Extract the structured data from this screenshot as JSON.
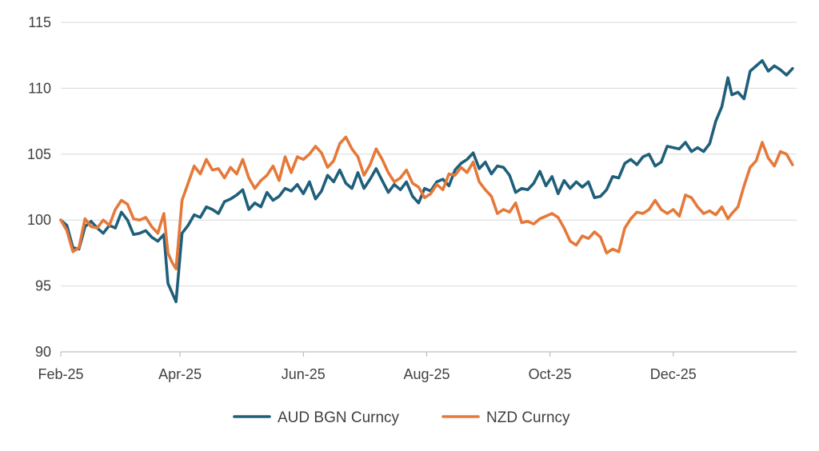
{
  "chart_data": {
    "type": "line",
    "title": "",
    "xlabel": "",
    "ylabel": "",
    "ylim": [
      90,
      115
    ],
    "yticks": [
      90,
      95,
      100,
      105,
      110,
      115
    ],
    "xlim": [
      "2025-02-01",
      "2026-01-31"
    ],
    "xticks": [
      {
        "date": "2025-02-01",
        "label": "Feb-25"
      },
      {
        "date": "2025-04-01",
        "label": "Apr-25"
      },
      {
        "date": "2025-06-01",
        "label": "Jun-25"
      },
      {
        "date": "2025-08-01",
        "label": "Aug-25"
      },
      {
        "date": "2025-10-01",
        "label": "Oct-25"
      },
      {
        "date": "2025-12-01",
        "label": "Dec-25"
      }
    ],
    "grid": "horizontal",
    "legend": "bottom",
    "series": [
      {
        "name": "AUD BGN Curncy",
        "color": "#1f5f7a",
        "points": [
          [
            "2025-02-01",
            100.0
          ],
          [
            "2025-02-04",
            99.6
          ],
          [
            "2025-02-07",
            97.9
          ],
          [
            "2025-02-10",
            97.8
          ],
          [
            "2025-02-13",
            99.5
          ],
          [
            "2025-02-16",
            99.9
          ],
          [
            "2025-02-19",
            99.4
          ],
          [
            "2025-02-22",
            99.0
          ],
          [
            "2025-02-25",
            99.6
          ],
          [
            "2025-02-28",
            99.4
          ],
          [
            "2025-03-03",
            100.6
          ],
          [
            "2025-03-06",
            100.0
          ],
          [
            "2025-03-09",
            98.9
          ],
          [
            "2025-03-12",
            99.0
          ],
          [
            "2025-03-15",
            99.2
          ],
          [
            "2025-03-18",
            98.7
          ],
          [
            "2025-03-21",
            98.4
          ],
          [
            "2025-03-24",
            98.9
          ],
          [
            "2025-03-26",
            95.2
          ],
          [
            "2025-03-28",
            94.5
          ],
          [
            "2025-03-30",
            93.8
          ],
          [
            "2025-04-02",
            99.0
          ],
          [
            "2025-04-05",
            99.6
          ],
          [
            "2025-04-08",
            100.4
          ],
          [
            "2025-04-11",
            100.2
          ],
          [
            "2025-04-14",
            101.0
          ],
          [
            "2025-04-17",
            100.8
          ],
          [
            "2025-04-20",
            100.5
          ],
          [
            "2025-04-23",
            101.4
          ],
          [
            "2025-04-26",
            101.6
          ],
          [
            "2025-04-29",
            101.9
          ],
          [
            "2025-05-02",
            102.3
          ],
          [
            "2025-05-05",
            100.8
          ],
          [
            "2025-05-08",
            101.3
          ],
          [
            "2025-05-11",
            101.0
          ],
          [
            "2025-05-14",
            102.1
          ],
          [
            "2025-05-17",
            101.5
          ],
          [
            "2025-05-20",
            101.8
          ],
          [
            "2025-05-23",
            102.4
          ],
          [
            "2025-05-26",
            102.2
          ],
          [
            "2025-05-29",
            102.7
          ],
          [
            "2025-06-01",
            102.0
          ],
          [
            "2025-06-04",
            102.9
          ],
          [
            "2025-06-07",
            101.6
          ],
          [
            "2025-06-10",
            102.2
          ],
          [
            "2025-06-13",
            103.4
          ],
          [
            "2025-06-16",
            102.9
          ],
          [
            "2025-06-19",
            103.8
          ],
          [
            "2025-06-22",
            102.8
          ],
          [
            "2025-06-25",
            102.4
          ],
          [
            "2025-06-28",
            103.6
          ],
          [
            "2025-07-01",
            102.4
          ],
          [
            "2025-07-04",
            103.1
          ],
          [
            "2025-07-07",
            103.9
          ],
          [
            "2025-07-10",
            103.0
          ],
          [
            "2025-07-13",
            102.1
          ],
          [
            "2025-07-16",
            102.7
          ],
          [
            "2025-07-19",
            102.3
          ],
          [
            "2025-07-22",
            102.9
          ],
          [
            "2025-07-25",
            101.8
          ],
          [
            "2025-07-28",
            101.3
          ],
          [
            "2025-07-31",
            102.4
          ],
          [
            "2025-08-03",
            102.2
          ],
          [
            "2025-08-06",
            102.9
          ],
          [
            "2025-08-09",
            103.1
          ],
          [
            "2025-08-12",
            102.6
          ],
          [
            "2025-08-15",
            103.8
          ],
          [
            "2025-08-18",
            104.3
          ],
          [
            "2025-08-21",
            104.6
          ],
          [
            "2025-08-24",
            105.1
          ],
          [
            "2025-08-27",
            103.9
          ],
          [
            "2025-08-30",
            104.4
          ],
          [
            "2025-09-02",
            103.5
          ],
          [
            "2025-09-05",
            104.1
          ],
          [
            "2025-09-08",
            104.0
          ],
          [
            "2025-09-11",
            103.4
          ],
          [
            "2025-09-14",
            102.1
          ],
          [
            "2025-09-17",
            102.4
          ],
          [
            "2025-09-20",
            102.3
          ],
          [
            "2025-09-23",
            102.8
          ],
          [
            "2025-09-26",
            103.7
          ],
          [
            "2025-09-29",
            102.6
          ],
          [
            "2025-10-02",
            103.3
          ],
          [
            "2025-10-05",
            102.0
          ],
          [
            "2025-10-08",
            103.0
          ],
          [
            "2025-10-11",
            102.4
          ],
          [
            "2025-10-14",
            102.9
          ],
          [
            "2025-10-17",
            102.5
          ],
          [
            "2025-10-20",
            102.9
          ],
          [
            "2025-10-23",
            101.7
          ],
          [
            "2025-10-26",
            101.8
          ],
          [
            "2025-10-29",
            102.3
          ],
          [
            "2025-11-01",
            103.3
          ],
          [
            "2025-11-04",
            103.2
          ],
          [
            "2025-11-07",
            104.3
          ],
          [
            "2025-11-10",
            104.6
          ],
          [
            "2025-11-13",
            104.2
          ],
          [
            "2025-11-16",
            104.8
          ],
          [
            "2025-11-19",
            105.0
          ],
          [
            "2025-11-22",
            104.1
          ],
          [
            "2025-11-25",
            104.4
          ],
          [
            "2025-11-28",
            105.6
          ],
          [
            "2025-12-01",
            105.5
          ],
          [
            "2025-12-04",
            105.4
          ],
          [
            "2025-12-07",
            105.9
          ],
          [
            "2025-12-10",
            105.2
          ],
          [
            "2025-12-13",
            105.5
          ],
          [
            "2025-12-16",
            105.2
          ],
          [
            "2025-12-19",
            105.8
          ],
          [
            "2025-12-22",
            107.5
          ],
          [
            "2025-12-25",
            108.6
          ],
          [
            "2025-12-28",
            110.8
          ],
          [
            "2025-12-30",
            109.5
          ],
          [
            "2026-01-02",
            109.7
          ],
          [
            "2026-01-05",
            109.2
          ],
          [
            "2026-01-08",
            111.3
          ],
          [
            "2026-01-11",
            111.7
          ],
          [
            "2026-01-14",
            112.1
          ],
          [
            "2026-01-17",
            111.3
          ],
          [
            "2026-01-20",
            111.7
          ],
          [
            "2026-01-23",
            111.4
          ],
          [
            "2026-01-26",
            111.0
          ],
          [
            "2026-01-29",
            111.5
          ]
        ]
      },
      {
        "name": "NZD Curncy",
        "color": "#e5793a",
        "points": [
          [
            "2025-02-01",
            100.0
          ],
          [
            "2025-02-04",
            99.2
          ],
          [
            "2025-02-07",
            97.6
          ],
          [
            "2025-02-10",
            97.9
          ],
          [
            "2025-02-13",
            100.1
          ],
          [
            "2025-02-16",
            99.5
          ],
          [
            "2025-02-19",
            99.4
          ],
          [
            "2025-02-22",
            100.0
          ],
          [
            "2025-02-25",
            99.6
          ],
          [
            "2025-02-28",
            100.8
          ],
          [
            "2025-03-03",
            101.5
          ],
          [
            "2025-03-06",
            101.2
          ],
          [
            "2025-03-09",
            100.1
          ],
          [
            "2025-03-12",
            100.0
          ],
          [
            "2025-03-15",
            100.2
          ],
          [
            "2025-03-18",
            99.5
          ],
          [
            "2025-03-21",
            99.0
          ],
          [
            "2025-03-24",
            100.5
          ],
          [
            "2025-03-26",
            97.5
          ],
          [
            "2025-03-28",
            96.8
          ],
          [
            "2025-03-30",
            96.3
          ],
          [
            "2025-04-02",
            101.5
          ],
          [
            "2025-04-05",
            102.8
          ],
          [
            "2025-04-08",
            104.1
          ],
          [
            "2025-04-11",
            103.5
          ],
          [
            "2025-04-14",
            104.6
          ],
          [
            "2025-04-17",
            103.8
          ],
          [
            "2025-04-20",
            103.9
          ],
          [
            "2025-04-23",
            103.2
          ],
          [
            "2025-04-26",
            104.0
          ],
          [
            "2025-04-29",
            103.5
          ],
          [
            "2025-05-02",
            104.6
          ],
          [
            "2025-05-05",
            103.2
          ],
          [
            "2025-05-08",
            102.4
          ],
          [
            "2025-05-11",
            103.0
          ],
          [
            "2025-05-14",
            103.4
          ],
          [
            "2025-05-17",
            104.1
          ],
          [
            "2025-05-20",
            103.0
          ],
          [
            "2025-05-23",
            104.8
          ],
          [
            "2025-05-26",
            103.6
          ],
          [
            "2025-05-29",
            104.8
          ],
          [
            "2025-06-01",
            104.6
          ],
          [
            "2025-06-04",
            105.0
          ],
          [
            "2025-06-07",
            105.6
          ],
          [
            "2025-06-10",
            105.1
          ],
          [
            "2025-06-13",
            104.0
          ],
          [
            "2025-06-16",
            104.5
          ],
          [
            "2025-06-19",
            105.8
          ],
          [
            "2025-06-22",
            106.3
          ],
          [
            "2025-06-25",
            105.4
          ],
          [
            "2025-06-28",
            104.8
          ],
          [
            "2025-07-01",
            103.4
          ],
          [
            "2025-07-04",
            104.2
          ],
          [
            "2025-07-07",
            105.4
          ],
          [
            "2025-07-10",
            104.6
          ],
          [
            "2025-07-13",
            103.6
          ],
          [
            "2025-07-16",
            102.9
          ],
          [
            "2025-07-19",
            103.2
          ],
          [
            "2025-07-22",
            103.8
          ],
          [
            "2025-07-25",
            102.8
          ],
          [
            "2025-07-28",
            102.5
          ],
          [
            "2025-07-31",
            101.7
          ],
          [
            "2025-08-03",
            102.0
          ],
          [
            "2025-08-06",
            102.7
          ],
          [
            "2025-08-09",
            102.3
          ],
          [
            "2025-08-12",
            103.5
          ],
          [
            "2025-08-15",
            103.4
          ],
          [
            "2025-08-18",
            104.0
          ],
          [
            "2025-08-21",
            103.6
          ],
          [
            "2025-08-24",
            104.4
          ],
          [
            "2025-08-27",
            102.9
          ],
          [
            "2025-08-30",
            102.3
          ],
          [
            "2025-09-02",
            101.8
          ],
          [
            "2025-09-05",
            100.5
          ],
          [
            "2025-09-08",
            100.8
          ],
          [
            "2025-09-11",
            100.6
          ],
          [
            "2025-09-14",
            101.3
          ],
          [
            "2025-09-17",
            99.8
          ],
          [
            "2025-09-20",
            99.9
          ],
          [
            "2025-09-23",
            99.7
          ],
          [
            "2025-09-26",
            100.1
          ],
          [
            "2025-09-29",
            100.3
          ],
          [
            "2025-10-02",
            100.5
          ],
          [
            "2025-10-05",
            100.2
          ],
          [
            "2025-10-08",
            99.4
          ],
          [
            "2025-10-11",
            98.4
          ],
          [
            "2025-10-14",
            98.1
          ],
          [
            "2025-10-17",
            98.8
          ],
          [
            "2025-10-20",
            98.6
          ],
          [
            "2025-10-23",
            99.1
          ],
          [
            "2025-10-26",
            98.7
          ],
          [
            "2025-10-29",
            97.5
          ],
          [
            "2025-11-01",
            97.8
          ],
          [
            "2025-11-04",
            97.6
          ],
          [
            "2025-11-07",
            99.4
          ],
          [
            "2025-11-10",
            100.1
          ],
          [
            "2025-11-13",
            100.6
          ],
          [
            "2025-11-16",
            100.5
          ],
          [
            "2025-11-19",
            100.8
          ],
          [
            "2025-11-22",
            101.5
          ],
          [
            "2025-11-25",
            100.8
          ],
          [
            "2025-11-28",
            100.5
          ],
          [
            "2025-12-01",
            100.8
          ],
          [
            "2025-12-04",
            100.3
          ],
          [
            "2025-12-07",
            101.9
          ],
          [
            "2025-12-10",
            101.7
          ],
          [
            "2025-12-13",
            101.0
          ],
          [
            "2025-12-16",
            100.5
          ],
          [
            "2025-12-19",
            100.7
          ],
          [
            "2025-12-22",
            100.4
          ],
          [
            "2025-12-25",
            101.0
          ],
          [
            "2025-12-28",
            100.1
          ],
          [
            "2025-12-30",
            100.5
          ],
          [
            "2026-01-02",
            101.0
          ],
          [
            "2026-01-05",
            102.6
          ],
          [
            "2026-01-08",
            104.0
          ],
          [
            "2026-01-11",
            104.5
          ],
          [
            "2026-01-14",
            105.9
          ],
          [
            "2026-01-17",
            104.7
          ],
          [
            "2026-01-20",
            104.1
          ],
          [
            "2026-01-23",
            105.2
          ],
          [
            "2026-01-26",
            105.0
          ],
          [
            "2026-01-29",
            104.2
          ]
        ]
      }
    ]
  }
}
